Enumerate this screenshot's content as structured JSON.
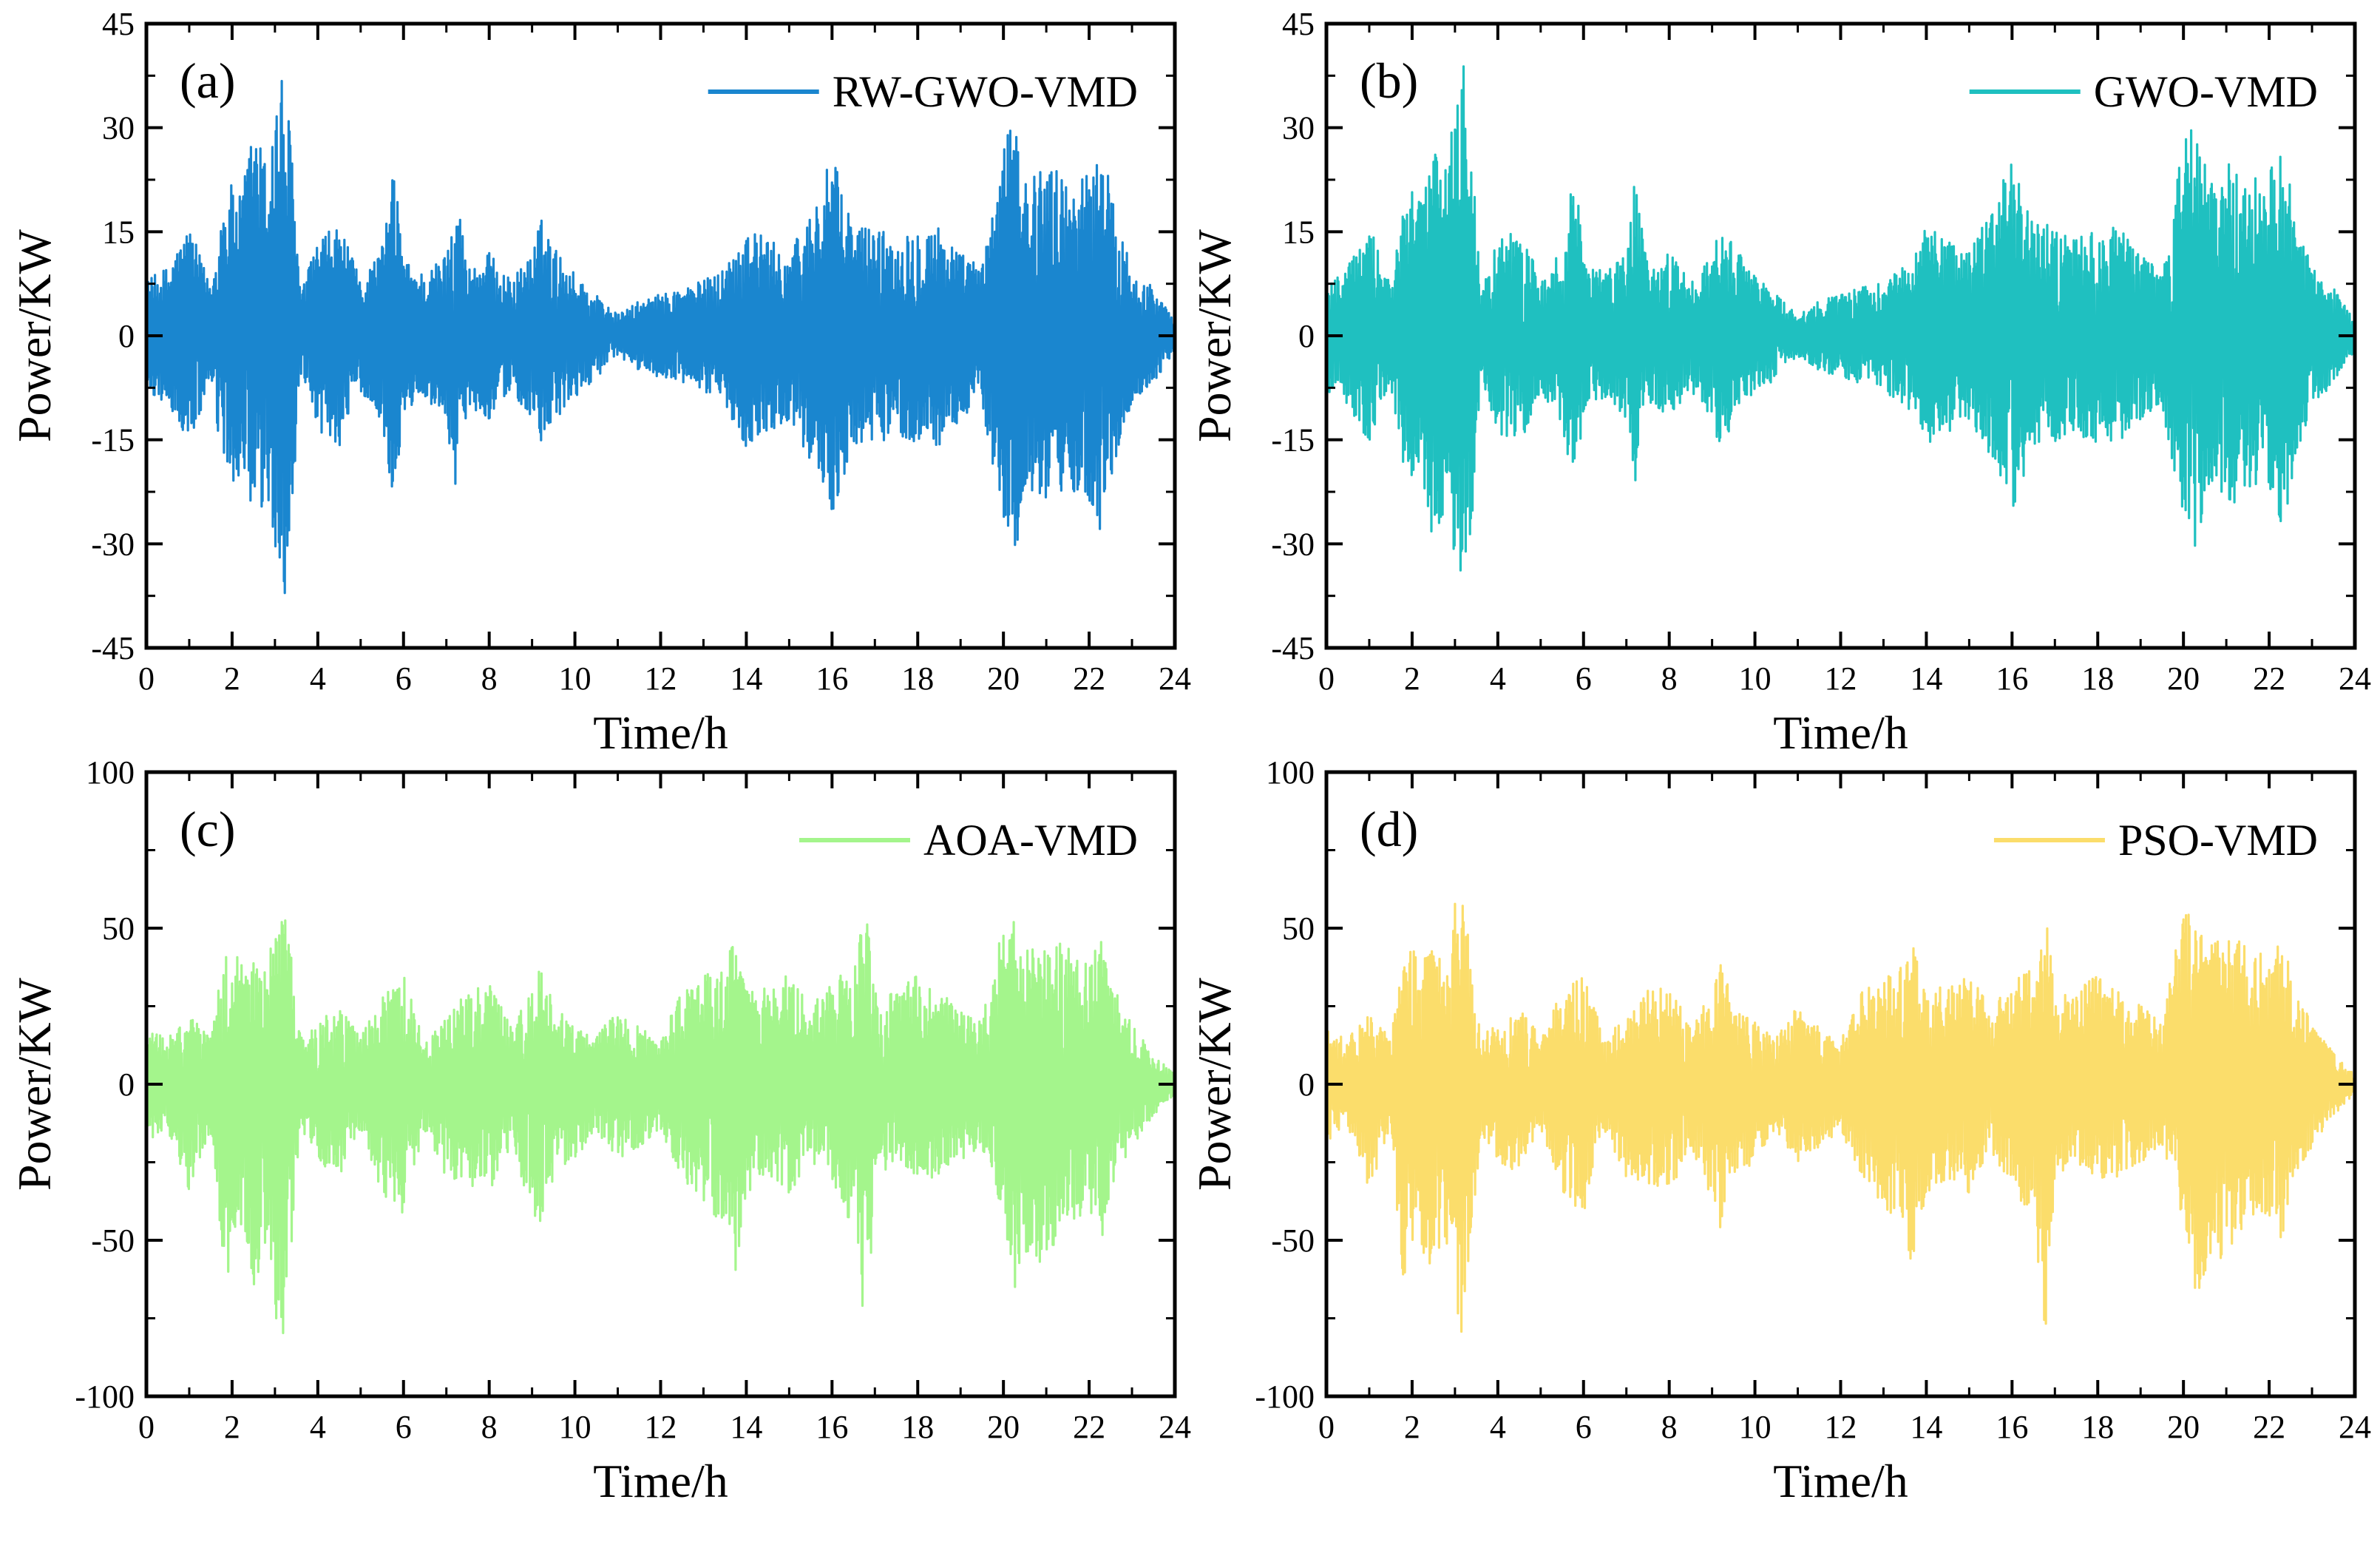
{
  "chart_data": [
    {
      "type": "line",
      "panel_label": "(a)",
      "xlabel": "Time/h",
      "ylabel": "Power/KW",
      "xlim": [
        0,
        24
      ],
      "ylim": [
        -45,
        45
      ],
      "xticks": [
        0,
        2,
        4,
        6,
        8,
        10,
        12,
        14,
        16,
        18,
        20,
        22,
        24
      ],
      "yticks": [
        -45,
        -30,
        -15,
        0,
        15,
        30,
        45
      ],
      "legend_position": "top-right",
      "grid": false,
      "series": [
        {
          "name": "RW-GWO-VMD",
          "color": "#1a86cf",
          "x": [
            0,
            0.5,
            1,
            1.5,
            1.8,
            2,
            2.2,
            2.5,
            2.8,
            3,
            3.2,
            3.4,
            3.6,
            4,
            4.5,
            5,
            5.5,
            5.8,
            6,
            6.5,
            7,
            7.2,
            7.5,
            8,
            8.5,
            9,
            9.2,
            9.5,
            10,
            10.5,
            11,
            11.5,
            12,
            12.5,
            13,
            13.5,
            14,
            14.5,
            15,
            15.5,
            16,
            16.5,
            17,
            17.5,
            18,
            18.5,
            19,
            19.5,
            20,
            20.3,
            20.6,
            21,
            21.5,
            22,
            22.3,
            22.6,
            23,
            23.5,
            24
          ],
          "upper": [
            8,
            10,
            16,
            7,
            20,
            22,
            20,
            31,
            25,
            34,
            39,
            27,
            6,
            14,
            16,
            8,
            13,
            25,
            11,
            9,
            12,
            23,
            10,
            12,
            8,
            12,
            17,
            13,
            9,
            6,
            3,
            5,
            6,
            7,
            8,
            10,
            16,
            14,
            12,
            18,
            26,
            16,
            16,
            14,
            16,
            16,
            12,
            10,
            28,
            31,
            22,
            26,
            22,
            24,
            28,
            18,
            10,
            7,
            2
          ],
          "lower": [
            -8,
            -10,
            -16,
            -7,
            -20,
            -22,
            -20,
            -30,
            -24,
            -32,
            -39,
            -27,
            -6,
            -14,
            -16,
            -8,
            -13,
            -25,
            -11,
            -9,
            -12,
            -22,
            -10,
            -12,
            -8,
            -12,
            -17,
            -13,
            -9,
            -6,
            -3,
            -5,
            -6,
            -7,
            -8,
            -10,
            -16,
            -14,
            -12,
            -18,
            -26,
            -16,
            -16,
            -14,
            -16,
            -16,
            -12,
            -10,
            -28,
            -31,
            -22,
            -26,
            -22,
            -24,
            -29,
            -18,
            -10,
            -7,
            -2
          ]
        }
      ]
    },
    {
      "type": "line",
      "panel_label": "(b)",
      "xlabel": "Time/h",
      "ylabel": "Power/KW",
      "xlim": [
        0,
        24
      ],
      "ylim": [
        -45,
        45
      ],
      "xticks": [
        0,
        2,
        4,
        6,
        8,
        10,
        12,
        14,
        16,
        18,
        20,
        22,
        24
      ],
      "yticks": [
        -45,
        -30,
        -15,
        0,
        15,
        30,
        45
      ],
      "legend_position": "top-right",
      "grid": false,
      "series": [
        {
          "name": "GWO-VMD",
          "color": "#1fc0c0",
          "x": [
            0,
            0.5,
            1,
            1.5,
            1.8,
            2,
            2.2,
            2.5,
            2.8,
            3,
            3.2,
            3.4,
            3.6,
            4,
            4.5,
            5,
            5.5,
            5.8,
            6,
            6.5,
            7,
            7.2,
            7.5,
            8,
            8.5,
            9,
            9.2,
            9.5,
            10,
            10.5,
            11,
            11.5,
            12,
            12.5,
            13,
            13.5,
            14,
            14.5,
            15,
            15.5,
            16,
            16.5,
            17,
            17.5,
            18,
            18.5,
            19,
            19.5,
            20,
            20.3,
            20.6,
            21,
            21.5,
            22,
            22.3,
            22.6,
            23,
            23.5,
            24
          ],
          "upper": [
            8,
            10,
            16,
            7,
            20,
            22,
            20,
            31,
            25,
            34,
            39,
            27,
            6,
            14,
            16,
            8,
            13,
            25,
            11,
            9,
            12,
            23,
            10,
            12,
            8,
            12,
            17,
            13,
            9,
            6,
            3,
            5,
            6,
            7,
            8,
            10,
            16,
            14,
            12,
            18,
            26,
            16,
            16,
            14,
            16,
            16,
            12,
            10,
            28,
            31,
            22,
            26,
            22,
            24,
            28,
            18,
            10,
            7,
            2
          ],
          "lower": [
            -8,
            -10,
            -16,
            -7,
            -20,
            -22,
            -20,
            -30,
            -24,
            -32,
            -39,
            -27,
            -6,
            -14,
            -16,
            -8,
            -13,
            -25,
            -11,
            -9,
            -12,
            -22,
            -10,
            -12,
            -8,
            -12,
            -17,
            -13,
            -9,
            -6,
            -3,
            -5,
            -6,
            -7,
            -8,
            -10,
            -16,
            -14,
            -12,
            -18,
            -26,
            -16,
            -16,
            -14,
            -16,
            -16,
            -12,
            -10,
            -28,
            -31,
            -22,
            -26,
            -22,
            -24,
            -29,
            -18,
            -10,
            -7,
            -2
          ]
        }
      ]
    },
    {
      "type": "line",
      "panel_label": "(c)",
      "xlabel": "Time/h",
      "ylabel": "Power/KW",
      "xlim": [
        0,
        24
      ],
      "ylim": [
        -100,
        100
      ],
      "xticks": [
        0,
        2,
        4,
        6,
        8,
        10,
        12,
        14,
        16,
        18,
        20,
        22,
        24
      ],
      "yticks": [
        -100,
        -50,
        0,
        50,
        100
      ],
      "legend_position": "top-right",
      "grid": false,
      "series": [
        {
          "name": "AOA-VMD",
          "color": "#a4f58c",
          "x": [
            0,
            0.5,
            1,
            1.5,
            1.8,
            2,
            2.2,
            2.5,
            2.8,
            3,
            3.2,
            3.4,
            3.6,
            4,
            4.5,
            5,
            5.5,
            6,
            6.5,
            7,
            7.5,
            8,
            8.5,
            9,
            9.2,
            9.5,
            10,
            10.5,
            11,
            11.5,
            12,
            12.5,
            13,
            13.5,
            13.7,
            14,
            14.5,
            15,
            15.5,
            16,
            16.5,
            16.8,
            17,
            17.5,
            18,
            18.5,
            19,
            19.5,
            20,
            20.3,
            20.6,
            21,
            21.5,
            22,
            22.3,
            22.6,
            23,
            23.5,
            24
          ],
          "upper": [
            18,
            15,
            22,
            15,
            40,
            45,
            38,
            45,
            35,
            58,
            58,
            40,
            15,
            20,
            25,
            15,
            30,
            35,
            15,
            22,
            30,
            32,
            20,
            30,
            40,
            25,
            20,
            15,
            25,
            18,
            15,
            30,
            35,
            40,
            45,
            30,
            32,
            35,
            25,
            32,
            40,
            55,
            30,
            30,
            35,
            30,
            25,
            20,
            58,
            52,
            45,
            48,
            45,
            40,
            48,
            30,
            20,
            10,
            3
          ],
          "lower": [
            -18,
            -15,
            -34,
            -15,
            -68,
            -55,
            -50,
            -68,
            -50,
            -76,
            -86,
            -50,
            -15,
            -25,
            -30,
            -15,
            -35,
            -42,
            -15,
            -30,
            -32,
            -35,
            -20,
            -40,
            -48,
            -30,
            -25,
            -15,
            -25,
            -20,
            -15,
            -30,
            -40,
            -46,
            -65,
            -35,
            -30,
            -35,
            -25,
            -30,
            -48,
            -84,
            -30,
            -25,
            -30,
            -30,
            -25,
            -20,
            -44,
            -68,
            -60,
            -55,
            -45,
            -42,
            -50,
            -30,
            -20,
            -10,
            -3
          ]
        }
      ]
    },
    {
      "type": "line",
      "panel_label": "(d)",
      "xlabel": "Time/h",
      "ylabel": "Power/KW",
      "xlim": [
        0,
        24
      ],
      "ylim": [
        -100,
        100
      ],
      "xticks": [
        0,
        2,
        4,
        6,
        8,
        10,
        12,
        14,
        16,
        18,
        20,
        22,
        24
      ],
      "yticks": [
        -100,
        -50,
        0,
        50,
        100
      ],
      "legend_position": "top-right",
      "grid": false,
      "series": [
        {
          "name": "PSO-VMD",
          "color": "#fbdd6b",
          "x": [
            0,
            0.5,
            1,
            1.5,
            1.8,
            2,
            2.2,
            2.5,
            2.8,
            3,
            3.2,
            3.4,
            3.6,
            4,
            4.5,
            5,
            5.5,
            6,
            6.5,
            7,
            7.5,
            8,
            8.5,
            9,
            9.2,
            9.5,
            10,
            10.5,
            11,
            11.5,
            12,
            12.5,
            13,
            13.5,
            13.7,
            14,
            14.5,
            15,
            15.5,
            16,
            16.5,
            16.8,
            17,
            17.5,
            18,
            18.5,
            19,
            19.5,
            20,
            20.3,
            20.6,
            21,
            21.5,
            22,
            22.3,
            22.6,
            23,
            23.5,
            24
          ],
          "upper": [
            18,
            15,
            22,
            15,
            40,
            45,
            38,
            45,
            35,
            58,
            58,
            40,
            15,
            20,
            25,
            15,
            30,
            35,
            15,
            22,
            30,
            32,
            20,
            30,
            40,
            25,
            20,
            15,
            25,
            18,
            15,
            30,
            35,
            40,
            45,
            30,
            32,
            35,
            25,
            32,
            40,
            55,
            30,
            30,
            35,
            30,
            25,
            20,
            58,
            52,
            45,
            48,
            45,
            40,
            48,
            30,
            20,
            10,
            3
          ],
          "lower": [
            -18,
            -15,
            -34,
            -15,
            -68,
            -55,
            -50,
            -68,
            -50,
            -76,
            -86,
            -50,
            -15,
            -25,
            -30,
            -15,
            -35,
            -42,
            -15,
            -30,
            -32,
            -35,
            -20,
            -40,
            -48,
            -30,
            -25,
            -15,
            -25,
            -20,
            -15,
            -30,
            -40,
            -46,
            -65,
            -35,
            -30,
            -35,
            -25,
            -30,
            -48,
            -84,
            -30,
            -25,
            -30,
            -30,
            -25,
            -20,
            -44,
            -68,
            -60,
            -55,
            -45,
            -42,
            -50,
            -30,
            -20,
            -10,
            -3
          ]
        }
      ]
    }
  ]
}
